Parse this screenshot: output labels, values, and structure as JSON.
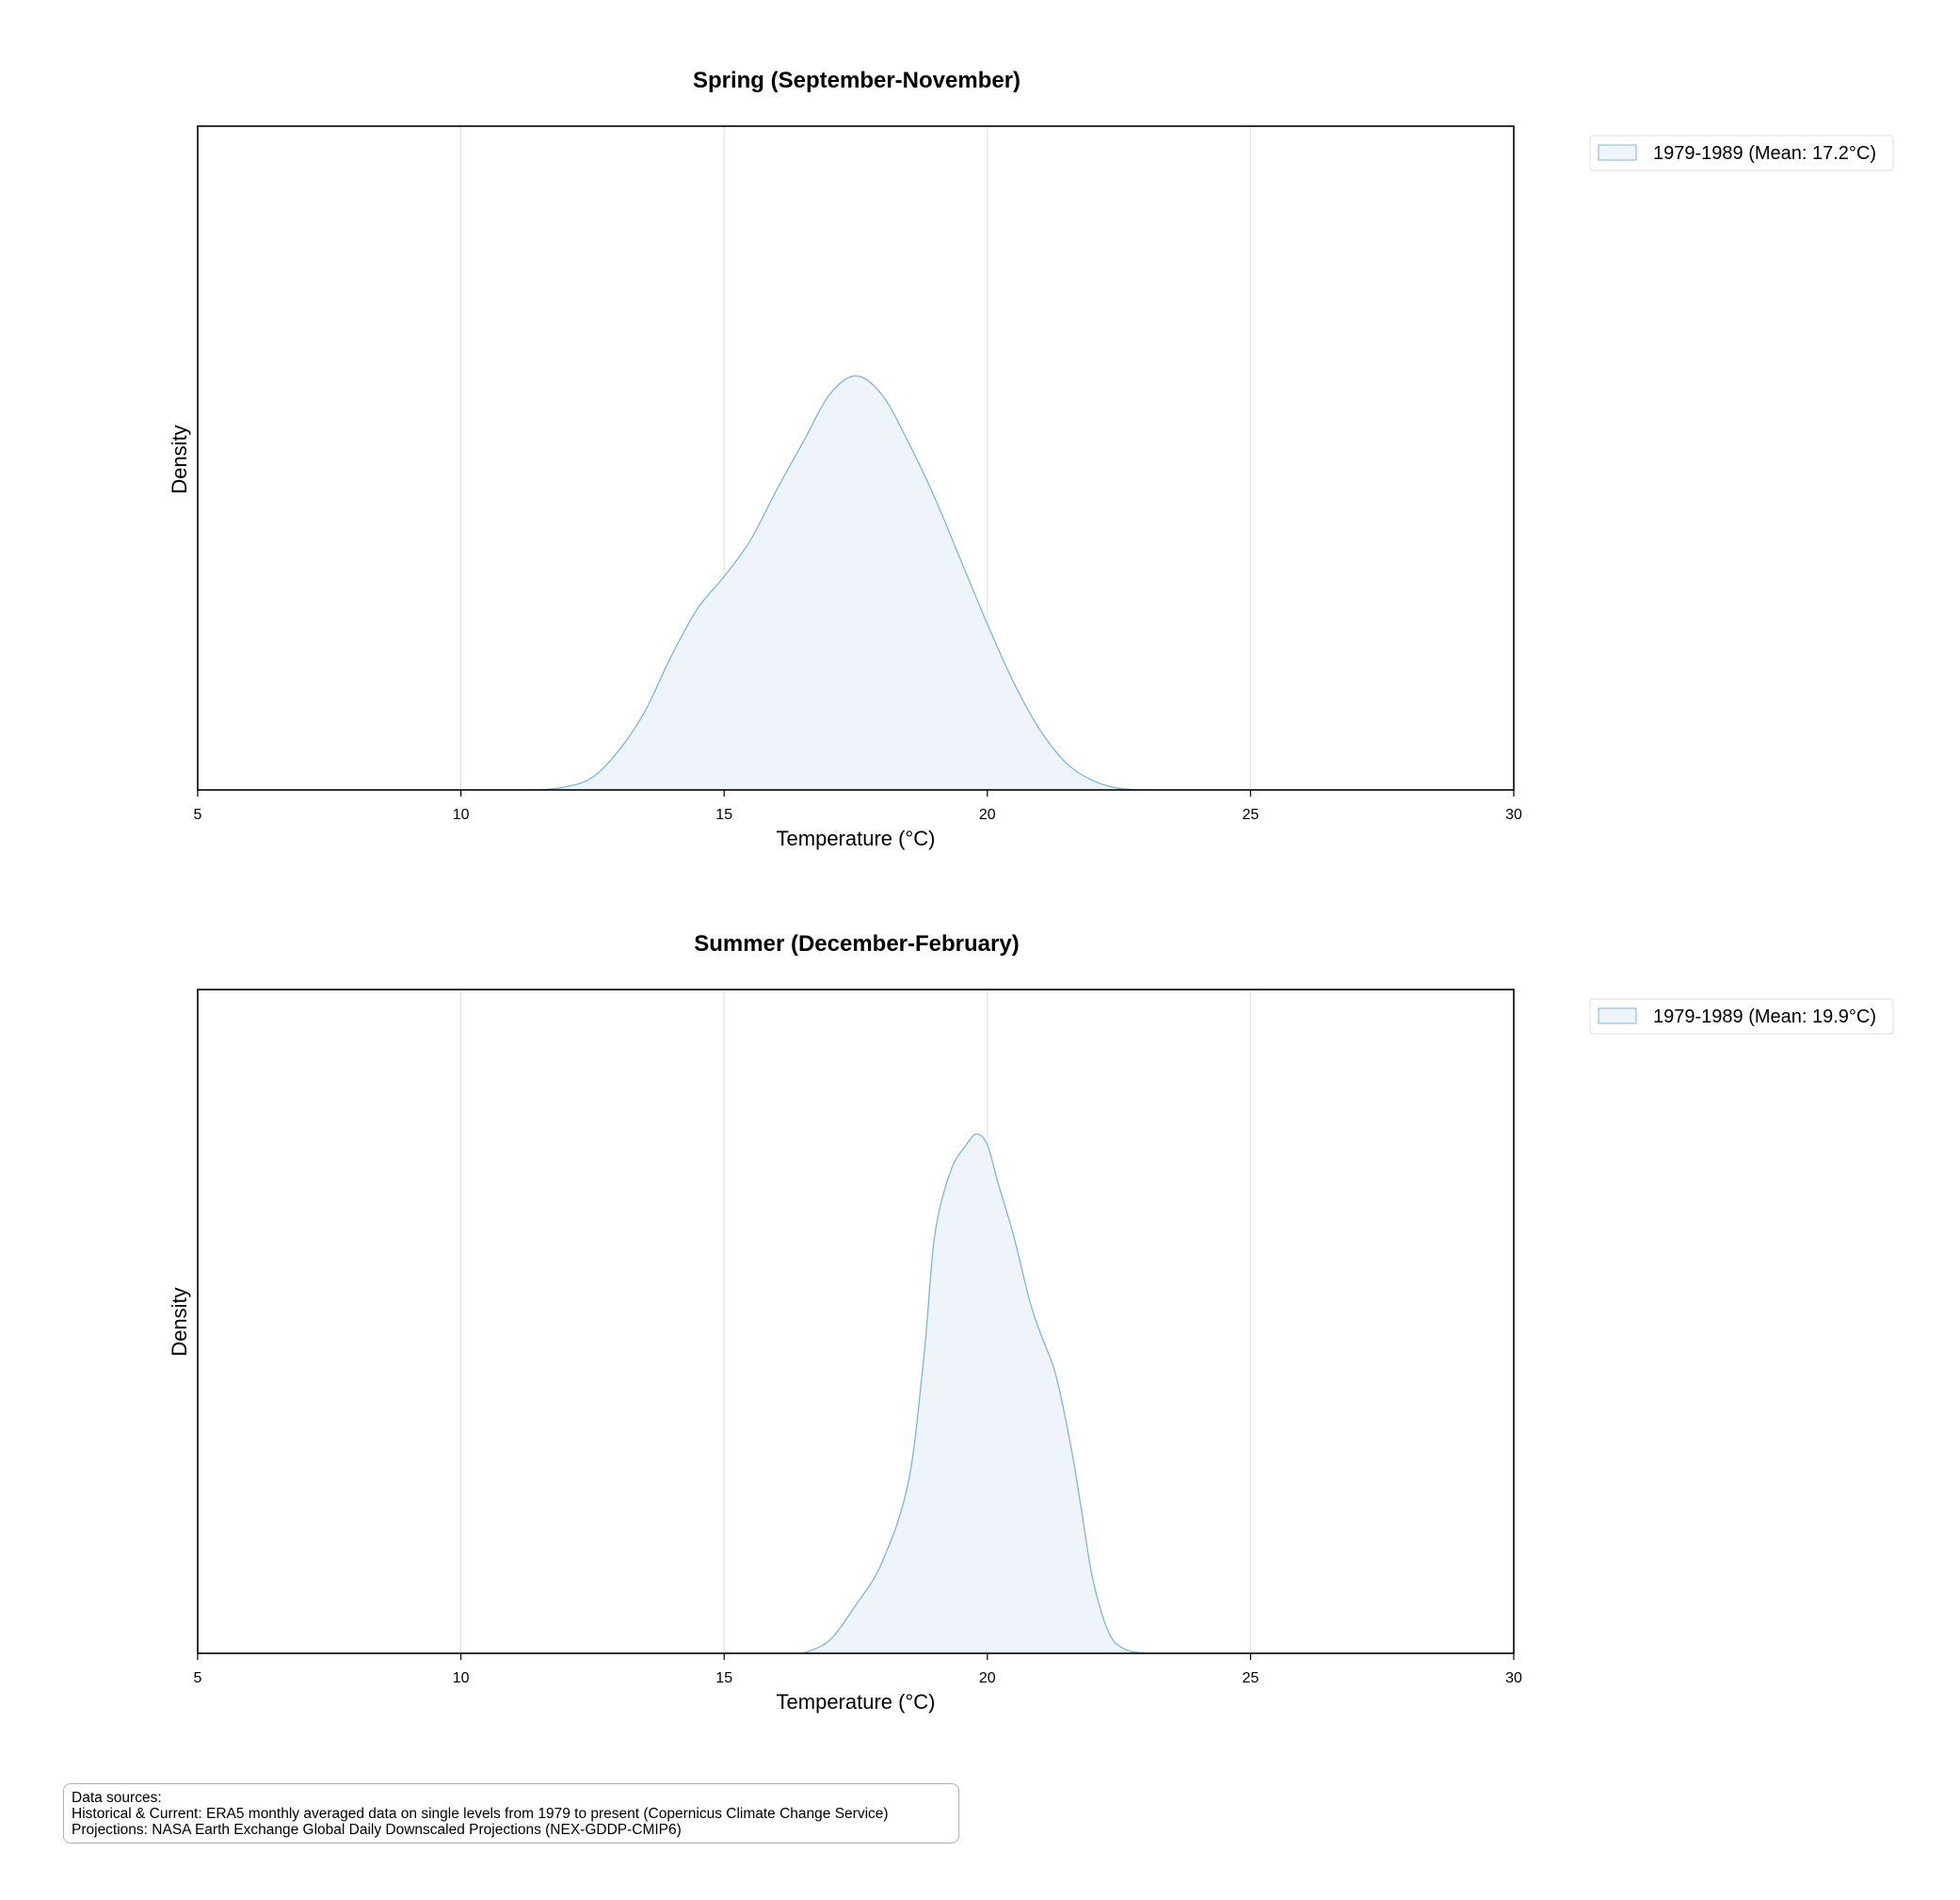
{
  "charts": [
    {
      "title": "Spring (September-November)",
      "xlabel": "Temperature (°C)",
      "ylabel": "Density",
      "xticks": [
        "5",
        "10",
        "15",
        "20",
        "25",
        "30"
      ],
      "legend": "1979-1989 (Mean: 17.2°C)"
    },
    {
      "title": "Summer (December-February)",
      "xlabel": "Temperature (°C)",
      "ylabel": "Density",
      "xticks": [
        "5",
        "10",
        "15",
        "20",
        "25",
        "30"
      ],
      "legend": "1979-1989 (Mean: 19.9°C)"
    }
  ],
  "sources": {
    "heading": "Data sources:",
    "line1": "Historical & Current: ERA5 monthly averaged data on single levels from 1979 to present (Copernicus Climate Change Service)",
    "line2": "Projections: NASA Earth Exchange Global Daily Downscaled Projections (NEX-GDDP-CMIP6)"
  },
  "colors": {
    "curve": "#7fb5db",
    "fill": "#eef4f9",
    "grid": "#e3e3e3"
  },
  "chart_data": [
    {
      "type": "area",
      "title": "Spring (September-November)",
      "xlabel": "Temperature (°C)",
      "ylabel": "Density",
      "xlim": [
        5,
        30
      ],
      "ylim": [
        0,
        0.42
      ],
      "grid": "vertical",
      "legend_position": "outside-top-right",
      "series": [
        {
          "name": "1979-1989 (Mean: 17.2°C)",
          "x": [
            11.5,
            12,
            12.5,
            13,
            13.5,
            14,
            14.5,
            15,
            15.5,
            16,
            16.5,
            17,
            17.5,
            18,
            18.5,
            19,
            19.5,
            20,
            20.5,
            21,
            21.5,
            22,
            22.5,
            23
          ],
          "y": [
            0.0,
            0.002,
            0.008,
            0.025,
            0.05,
            0.085,
            0.115,
            0.135,
            0.158,
            0.19,
            0.22,
            0.25,
            0.262,
            0.25,
            0.22,
            0.185,
            0.145,
            0.105,
            0.068,
            0.038,
            0.017,
            0.006,
            0.001,
            0.0
          ]
        }
      ]
    },
    {
      "type": "area",
      "title": "Summer (December-February)",
      "xlabel": "Temperature (°C)",
      "ylabel": "Density",
      "xlim": [
        5,
        30
      ],
      "ylim": [
        0,
        0.62
      ],
      "grid": "vertical",
      "legend_position": "outside-top-right",
      "series": [
        {
          "name": "1979-1989 (Mean: 19.9°C)",
          "x": [
            16.5,
            17,
            17.5,
            18,
            18.5,
            18.8,
            19,
            19.3,
            19.6,
            19.8,
            20,
            20.2,
            20.5,
            20.8,
            21,
            21.3,
            21.6,
            21.8,
            22,
            22.3,
            22.6,
            23
          ],
          "y": [
            0.0,
            0.012,
            0.045,
            0.085,
            0.16,
            0.28,
            0.39,
            0.45,
            0.475,
            0.485,
            0.475,
            0.44,
            0.39,
            0.33,
            0.3,
            0.26,
            0.19,
            0.13,
            0.07,
            0.02,
            0.004,
            0.0
          ]
        }
      ]
    }
  ]
}
